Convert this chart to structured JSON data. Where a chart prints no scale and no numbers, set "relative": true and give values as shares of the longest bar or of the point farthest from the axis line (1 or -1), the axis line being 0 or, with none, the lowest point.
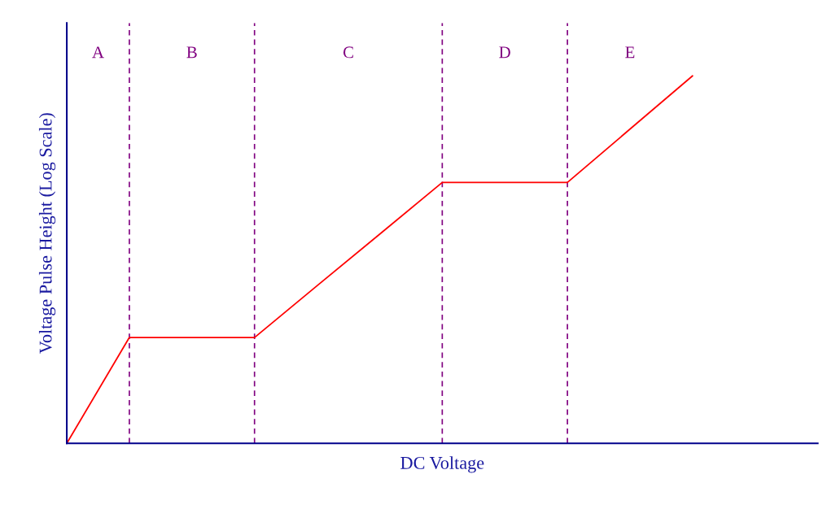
{
  "chart_data": {
    "type": "line",
    "relative": true,
    "xlabel": "DC Voltage",
    "ylabel": "Voltage Pulse Height (Log Scale)",
    "categories": [
      null,
      null,
      null,
      null,
      null,
      null,
      null,
      null,
      null,
      null,
      null,
      null,
      null
    ],
    "series": [
      {
        "color": "#ff0000",
        "values": [
          0,
          0.288,
          0.288,
          0.288,
          0.429,
          0.569,
          0.71,
          0.71,
          0.71,
          0.855,
          1,
          null,
          null
        ]
      }
    ],
    "annotations": [
      "A",
      "B",
      "C",
      "D",
      "E"
    ],
    "grid": "x",
    "legend": false,
    "marker": "none",
    "line_style": "solid"
  }
}
